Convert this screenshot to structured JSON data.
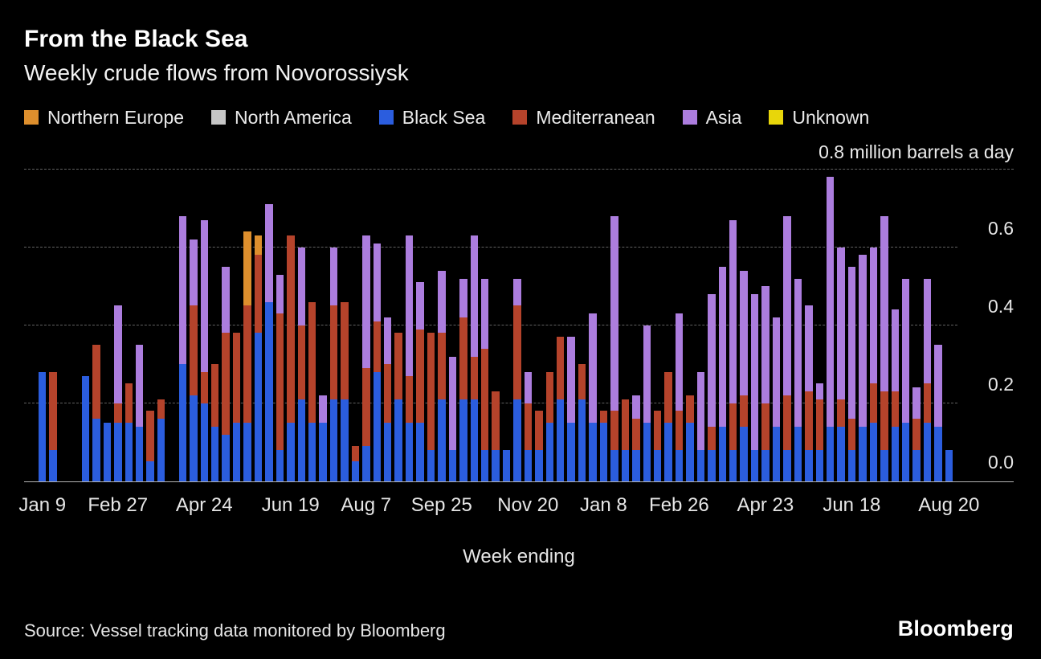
{
  "header": {
    "title": "From the Black Sea",
    "subtitle": "Weekly crude flows from Novorossiysk"
  },
  "legend": [
    {
      "label": "Northern Europe",
      "color": "#DE8F2D"
    },
    {
      "label": "North America",
      "color": "#C6C6C6"
    },
    {
      "label": "Black Sea",
      "color": "#2B5DDE"
    },
    {
      "label": "Mediterranean",
      "color": "#B5432B"
    },
    {
      "label": "Asia",
      "color": "#AC7DDE"
    },
    {
      "label": "Unknown",
      "color": "#E8D60A"
    }
  ],
  "chart_data": {
    "type": "bar",
    "stacked": true,
    "title": "From the Black Sea",
    "subtitle": "Weekly crude flows from Novorossiysk",
    "unit_label": "0.8 million barrels a day",
    "xlabel": "Week ending",
    "ylabel": "million barrels a day",
    "ylim": [
      0,
      0.8
    ],
    "grid": "dashed-horizontal",
    "legend_position": "top",
    "n_bars": 85,
    "y_ticks": [
      {
        "value": 0.0,
        "label": "0.0"
      },
      {
        "value": 0.2,
        "label": "0.2"
      },
      {
        "value": 0.4,
        "label": "0.4"
      },
      {
        "value": 0.6,
        "label": "0.6"
      }
    ],
    "x_tick_positions": [
      0,
      7,
      15,
      23,
      30,
      37,
      45,
      52,
      59,
      67,
      75,
      84
    ],
    "x_tick_labels": [
      "Jan 9",
      "Feb 27",
      "Apr 24",
      "Jun 19",
      "Aug 7",
      "Sep 25",
      "Nov 20",
      "Jan 8",
      "Feb 26",
      "Apr 23",
      "Jun 18",
      "Aug 20"
    ],
    "series": [
      {
        "name": "Black Sea",
        "color": "#2B5DDE",
        "values": [
          0.28,
          0.08,
          0,
          0,
          0.27,
          0.16,
          0.15,
          0.15,
          0.15,
          0.14,
          0.05,
          0.16,
          0,
          0.3,
          0.22,
          0.2,
          0.14,
          0.12,
          0.15,
          0.15,
          0.38,
          0.46,
          0.08,
          0.15,
          0.21,
          0.15,
          0.15,
          0.21,
          0.21,
          0.05,
          0.09,
          0.28,
          0.15,
          0.21,
          0.15,
          0.15,
          0.08,
          0.21,
          0.08,
          0.21,
          0.21,
          0.08,
          0.08,
          0.08,
          0.21,
          0.08,
          0.08,
          0.15,
          0.21,
          0.15,
          0.21,
          0.15,
          0.15,
          0.08,
          0.08,
          0.08,
          0.15,
          0.08,
          0.15,
          0.08,
          0.15,
          0.08,
          0.08,
          0.14,
          0.08,
          0.14,
          0.08,
          0.08,
          0.14,
          0.08,
          0.14,
          0.08,
          0.08,
          0.14,
          0.14,
          0.08,
          0.14,
          0.15,
          0.08,
          0.14,
          0.15,
          0.08,
          0.15,
          0.14,
          0.08
        ]
      },
      {
        "name": "Mediterranean",
        "color": "#B5432B",
        "values": [
          0,
          0.2,
          0,
          0,
          0,
          0.19,
          0,
          0.05,
          0.1,
          0,
          0.13,
          0.05,
          0,
          0,
          0.23,
          0.08,
          0.16,
          0.26,
          0.23,
          0.3,
          0.2,
          0,
          0.35,
          0.48,
          0.19,
          0.31,
          0,
          0.24,
          0.25,
          0.04,
          0.2,
          0.13,
          0.15,
          0.17,
          0.12,
          0.24,
          0.3,
          0.17,
          0,
          0.21,
          0.11,
          0.26,
          0.15,
          0,
          0.24,
          0.12,
          0.1,
          0.13,
          0.16,
          0,
          0.09,
          0,
          0.03,
          0.1,
          0.13,
          0.08,
          0,
          0.1,
          0.13,
          0.1,
          0.07,
          0,
          0.06,
          0,
          0.12,
          0.08,
          0,
          0.12,
          0,
          0.14,
          0,
          0.15,
          0.13,
          0,
          0.07,
          0.08,
          0,
          0.1,
          0.15,
          0.09,
          0,
          0.08,
          0.1,
          0,
          0
        ]
      },
      {
        "name": "Northern Europe",
        "color": "#DE8F2D",
        "values": [
          0,
          0,
          0,
          0,
          0,
          0,
          0,
          0,
          0,
          0,
          0,
          0,
          0,
          0,
          0,
          0,
          0,
          0,
          0,
          0.19,
          0.05,
          0,
          0,
          0,
          0,
          0,
          0,
          0,
          0,
          0,
          0,
          0,
          0,
          0,
          0,
          0,
          0,
          0,
          0,
          0,
          0,
          0,
          0,
          0,
          0,
          0,
          0,
          0,
          0,
          0,
          0,
          0,
          0,
          0,
          0,
          0,
          0,
          0,
          0,
          0,
          0,
          0,
          0,
          0,
          0,
          0,
          0,
          0,
          0,
          0,
          0,
          0,
          0,
          0,
          0,
          0,
          0,
          0,
          0,
          0,
          0,
          0,
          0,
          0,
          0
        ]
      },
      {
        "name": "North America",
        "color": "#C6C6C6",
        "values": []
      },
      {
        "name": "Asia",
        "color": "#AC7DDE",
        "values": [
          0,
          0,
          0,
          0,
          0,
          0,
          0,
          0.25,
          0,
          0.21,
          0,
          0,
          0,
          0.38,
          0.17,
          0.39,
          0,
          0.17,
          0,
          0,
          0,
          0.25,
          0.1,
          0,
          0.2,
          0,
          0.07,
          0.15,
          0,
          0,
          0.34,
          0.2,
          0.12,
          0,
          0.36,
          0.12,
          0,
          0.16,
          0.24,
          0.1,
          0.31,
          0.18,
          0,
          0,
          0.07,
          0.08,
          0,
          0,
          0,
          0.22,
          0,
          0.28,
          0,
          0.5,
          0,
          0.06,
          0.25,
          0,
          0,
          0.25,
          0,
          0.2,
          0.34,
          0.41,
          0.47,
          0.32,
          0.4,
          0.3,
          0.28,
          0.46,
          0.38,
          0.22,
          0.04,
          0.64,
          0.39,
          0.39,
          0.44,
          0.35,
          0.45,
          0.21,
          0.37,
          0.08,
          0.27,
          0.21,
          0
        ]
      },
      {
        "name": "Unknown",
        "color": "#E8D60A",
        "values": []
      }
    ]
  },
  "footer": {
    "source": "Source: Vessel tracking data monitored by Bloomberg",
    "logo": "Bloomberg"
  }
}
